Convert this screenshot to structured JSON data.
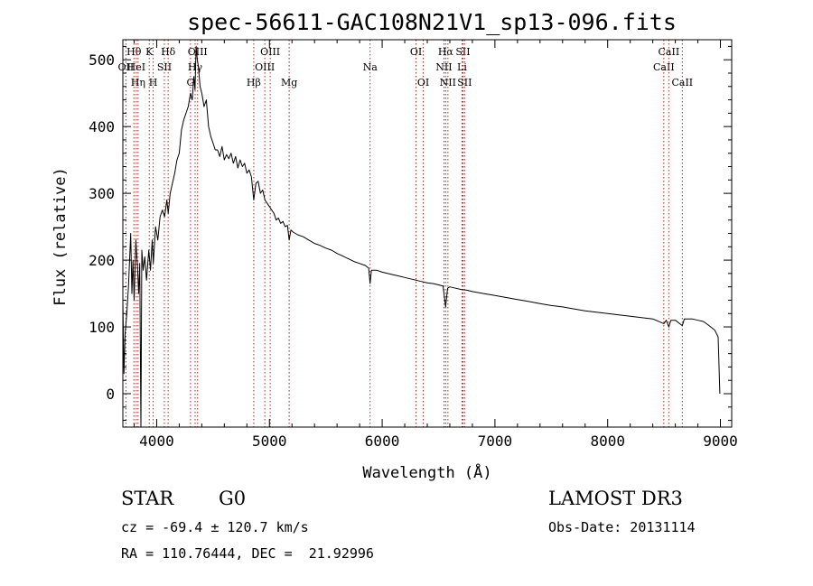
{
  "chart_data": {
    "type": "line",
    "title": "spec-56611-GAC108N21V1_sp13-096.fits",
    "xlabel": "Wavelength (Å)",
    "ylabel": "Flux (relative)",
    "xlim": [
      3700,
      9100
    ],
    "ylim": [
      -50,
      530
    ],
    "x_ticks": [
      4000,
      5000,
      6000,
      7000,
      8000,
      9000
    ],
    "y_ticks": [
      0,
      100,
      200,
      300,
      400,
      500
    ],
    "grid": false,
    "series": [
      {
        "name": "flux",
        "points": [
          [
            3700,
            140
          ],
          [
            3710,
            30
          ],
          [
            3720,
            90
          ],
          [
            3735,
            120
          ],
          [
            3750,
            160
          ],
          [
            3770,
            240
          ],
          [
            3780,
            150
          ],
          [
            3790,
            200
          ],
          [
            3800,
            140
          ],
          [
            3815,
            230
          ],
          [
            3830,
            190
          ],
          [
            3840,
            150
          ],
          [
            3850,
            195
          ],
          [
            3860,
            -50
          ],
          [
            3868,
            215
          ],
          [
            3880,
            185
          ],
          [
            3895,
            205
          ],
          [
            3910,
            170
          ],
          [
            3930,
            215
          ],
          [
            3945,
            185
          ],
          [
            3960,
            230
          ],
          [
            3970,
            195
          ],
          [
            3990,
            250
          ],
          [
            4010,
            230
          ],
          [
            4030,
            265
          ],
          [
            4050,
            275
          ],
          [
            4070,
            265
          ],
          [
            4090,
            290
          ],
          [
            4102,
            270
          ],
          [
            4120,
            300
          ],
          [
            4140,
            315
          ],
          [
            4160,
            330
          ],
          [
            4180,
            350
          ],
          [
            4200,
            360
          ],
          [
            4220,
            395
          ],
          [
            4240,
            410
          ],
          [
            4260,
            420
          ],
          [
            4280,
            430
          ],
          [
            4300,
            450
          ],
          [
            4315,
            440
          ],
          [
            4330,
            475
          ],
          [
            4340,
            455
          ],
          [
            4350,
            520
          ],
          [
            4360,
            500
          ],
          [
            4370,
            490
          ],
          [
            4385,
            460
          ],
          [
            4400,
            450
          ],
          [
            4420,
            430
          ],
          [
            4440,
            440
          ],
          [
            4460,
            400
          ],
          [
            4480,
            385
          ],
          [
            4500,
            375
          ],
          [
            4520,
            365
          ],
          [
            4540,
            365
          ],
          [
            4560,
            355
          ],
          [
            4580,
            370
          ],
          [
            4600,
            350
          ],
          [
            4620,
            358
          ],
          [
            4640,
            352
          ],
          [
            4660,
            360
          ],
          [
            4680,
            345
          ],
          [
            4700,
            355
          ],
          [
            4720,
            338
          ],
          [
            4740,
            350
          ],
          [
            4760,
            340
          ],
          [
            4780,
            345
          ],
          [
            4800,
            330
          ],
          [
            4820,
            335
          ],
          [
            4840,
            325
          ],
          [
            4861,
            290
          ],
          [
            4880,
            315
          ],
          [
            4900,
            318
          ],
          [
            4920,
            300
          ],
          [
            4940,
            305
          ],
          [
            4960,
            290
          ],
          [
            4980,
            285
          ],
          [
            5000,
            280
          ],
          [
            5020,
            275
          ],
          [
            5040,
            270
          ],
          [
            5060,
            260
          ],
          [
            5080,
            263
          ],
          [
            5100,
            255
          ],
          [
            5120,
            258
          ],
          [
            5140,
            250
          ],
          [
            5160,
            252
          ],
          [
            5175,
            230
          ],
          [
            5190,
            245
          ],
          [
            5210,
            242
          ],
          [
            5250,
            238
          ],
          [
            5300,
            235
          ],
          [
            5350,
            230
          ],
          [
            5400,
            225
          ],
          [
            5450,
            222
          ],
          [
            5500,
            218
          ],
          [
            5550,
            215
          ],
          [
            5600,
            210
          ],
          [
            5650,
            206
          ],
          [
            5700,
            202
          ],
          [
            5750,
            198
          ],
          [
            5800,
            195
          ],
          [
            5850,
            192
          ],
          [
            5880,
            188
          ],
          [
            5893,
            165
          ],
          [
            5905,
            185
          ],
          [
            5950,
            185
          ],
          [
            6000,
            182
          ],
          [
            6050,
            180
          ],
          [
            6100,
            178
          ],
          [
            6150,
            176
          ],
          [
            6200,
            174
          ],
          [
            6250,
            172
          ],
          [
            6300,
            170
          ],
          [
            6350,
            168
          ],
          [
            6400,
            166
          ],
          [
            6450,
            165
          ],
          [
            6500,
            163
          ],
          [
            6540,
            161
          ],
          [
            6563,
            130
          ],
          [
            6580,
            158
          ],
          [
            6600,
            160
          ],
          [
            6650,
            158
          ],
          [
            6700,
            156
          ],
          [
            6750,
            155
          ],
          [
            6800,
            153
          ],
          [
            6900,
            150
          ],
          [
            7000,
            147
          ],
          [
            7100,
            144
          ],
          [
            7200,
            141
          ],
          [
            7300,
            138
          ],
          [
            7400,
            135
          ],
          [
            7500,
            132
          ],
          [
            7600,
            130
          ],
          [
            7700,
            127
          ],
          [
            7800,
            124
          ],
          [
            7900,
            122
          ],
          [
            8000,
            120
          ],
          [
            8100,
            118
          ],
          [
            8200,
            116
          ],
          [
            8300,
            114
          ],
          [
            8400,
            112
          ],
          [
            8498,
            105
          ],
          [
            8520,
            110
          ],
          [
            8542,
            100
          ],
          [
            8560,
            110
          ],
          [
            8600,
            110
          ],
          [
            8662,
            102
          ],
          [
            8680,
            112
          ],
          [
            8750,
            112
          ],
          [
            8800,
            110
          ],
          [
            8850,
            108
          ],
          [
            8900,
            102
          ],
          [
            8950,
            95
          ],
          [
            8980,
            85
          ],
          [
            8995,
            0
          ]
        ]
      }
    ],
    "line_markers": [
      {
        "label": "OII",
        "x": 3727,
        "row": 2
      },
      {
        "label": "Hθ",
        "x": 3798,
        "row": 1
      },
      {
        "label": "HeI",
        "x": 3819,
        "row": 2
      },
      {
        "label": "Hη",
        "x": 3835,
        "row": 3
      },
      {
        "label": "K",
        "x": 3934,
        "row": 1
      },
      {
        "label": "H",
        "x": 3969,
        "row": 3
      },
      {
        "label": "SII",
        "x": 4068,
        "row": 2
      },
      {
        "label": "Hδ",
        "x": 4102,
        "row": 1
      },
      {
        "label": "G",
        "x": 4300,
        "row": 3
      },
      {
        "label": "Hγ",
        "x": 4341,
        "row": 2
      },
      {
        "label": "OIII",
        "x": 4363,
        "row": 1
      },
      {
        "label": "Hβ",
        "x": 4861,
        "row": 3
      },
      {
        "label": "OIII",
        "x": 4959,
        "row": 2
      },
      {
        "label": "OIII",
        "x": 5007,
        "row": 1
      },
      {
        "label": "Mg",
        "x": 5175,
        "row": 3
      },
      {
        "label": "Na",
        "x": 5893,
        "row": 2
      },
      {
        "label": "OI",
        "x": 6300,
        "row": 1
      },
      {
        "label": "OI",
        "x": 6364,
        "row": 3
      },
      {
        "label": "NII",
        "x": 6548,
        "row": 2
      },
      {
        "label": "Hα",
        "x": 6563,
        "row": 1
      },
      {
        "label": "NII",
        "x": 6583,
        "row": 3
      },
      {
        "label": "Li",
        "x": 6708,
        "row": 2
      },
      {
        "label": "SII",
        "x": 6716,
        "row": 1
      },
      {
        "label": "SII",
        "x": 6731,
        "row": 3
      },
      {
        "label": "CaII",
        "x": 8498,
        "row": 2
      },
      {
        "label": "CaII",
        "x": 8542,
        "row": 1
      },
      {
        "label": "CaII",
        "x": 8662,
        "row": 3
      }
    ],
    "colors": {
      "spectrum": "#000000",
      "markers": "#b22222",
      "axes": "#000000"
    }
  },
  "info": {
    "object_type": "STAR",
    "subclass": "G0",
    "survey": "LAMOST DR3",
    "redshift": "cz = -69.4 ± 120.7 km/s",
    "obs_date": "Obs-Date: 20131114",
    "coords": "RA = 110.76444, DEC =  21.92996"
  }
}
